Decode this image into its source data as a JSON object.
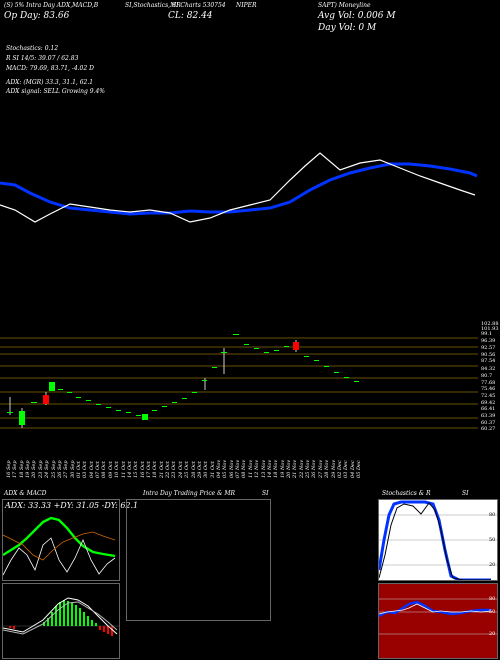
{
  "header": {
    "line1_left": "(S) 5% Intra Day ADX,MACD,B",
    "line1_mid": "SI,Stochastics,MR",
    "line1_mid2": "SI Charts 530754",
    "line1_right1": "NIPER",
    "line1_right2": "SAPT) Moneyline",
    "open_label": "Op  Day: 83.66",
    "close_label": "CL: 82.44",
    "avg_vol_label": "Avg Vol: 0.006  M",
    "day_vol_label": "Day Vol: 0   M"
  },
  "indicators": {
    "stochastics": "Stochastics: 0.12",
    "rsi": "R                SI 14/5: 39.07 / 62.83",
    "macd": "MACD: 79.69, 83.71, -4.02  D",
    "adx": "ADX:                (MGR) 33.3,  31.1,  62.1",
    "adx_signal": "ADX  signal: SELL Growing 9.4%"
  },
  "price_levels": [
    "102.88",
    "101.93",
    "99.1",
    "96.39",
    "92.57",
    "90.56",
    "87.54",
    "84.32",
    "80.7",
    "77.68",
    "75.46",
    "72.45",
    "69.42",
    "66.41",
    "63.39",
    "60.37",
    "60.27"
  ],
  "dates": [
    "16 Sep",
    "17 Sep",
    "18 Sep",
    "19 Sep",
    "20 Sep",
    "23 Sep",
    "24 Sep",
    "25 Sep",
    "26 Sep",
    "27 Sep",
    "30 Sep",
    "01 Oct",
    "03 Oct",
    "04 Oct",
    "07 Oct",
    "08 Oct",
    "09 Oct",
    "10 Oct",
    "11 Oct",
    "14 Oct",
    "15 Oct",
    "16 Oct",
    "17 Oct",
    "18 Oct",
    "21 Oct",
    "22 Oct",
    "23 Oct",
    "24 Oct",
    "25 Oct",
    "28 Oct",
    "29 Oct",
    "30 Oct",
    "31 Oct",
    "04 Nov",
    "05 Nov",
    "06 Nov",
    "07 Nov",
    "08 Nov",
    "11 Nov",
    "12 Nov",
    "13 Nov",
    "14 Nov",
    "18 Nov",
    "19 Nov",
    "20 Nov",
    "21 Nov",
    "22 Nov",
    "25 Nov",
    "26 Nov",
    "27 Nov",
    "28 Nov",
    "29 Nov",
    "02 Dec",
    "03 Dec",
    "04 Dec",
    "05 Dec"
  ],
  "panels": {
    "adx_macd_title": "ADX  & MACD",
    "adx_readout": "ADX: 33.33 +DY: 31.05 -DY: 62.1",
    "intraday_title": "Intra  Day Trading Price  & MR",
    "intraday_si": "SI",
    "stoch_title": "Stochastics & R",
    "stoch_si": "SI",
    "stoch_levels": [
      "80",
      "50",
      "20"
    ],
    "rsi_levels": [
      "80",
      "50",
      "20"
    ]
  },
  "colors": {
    "bullish": "#00ff00",
    "bearish": "#ff0000",
    "ma_line": "#0033ff",
    "price_line": "#ffffff",
    "grid": "#8a6a00",
    "rsi_bg": "#990000",
    "stoch_bg": "#ffffff"
  }
}
